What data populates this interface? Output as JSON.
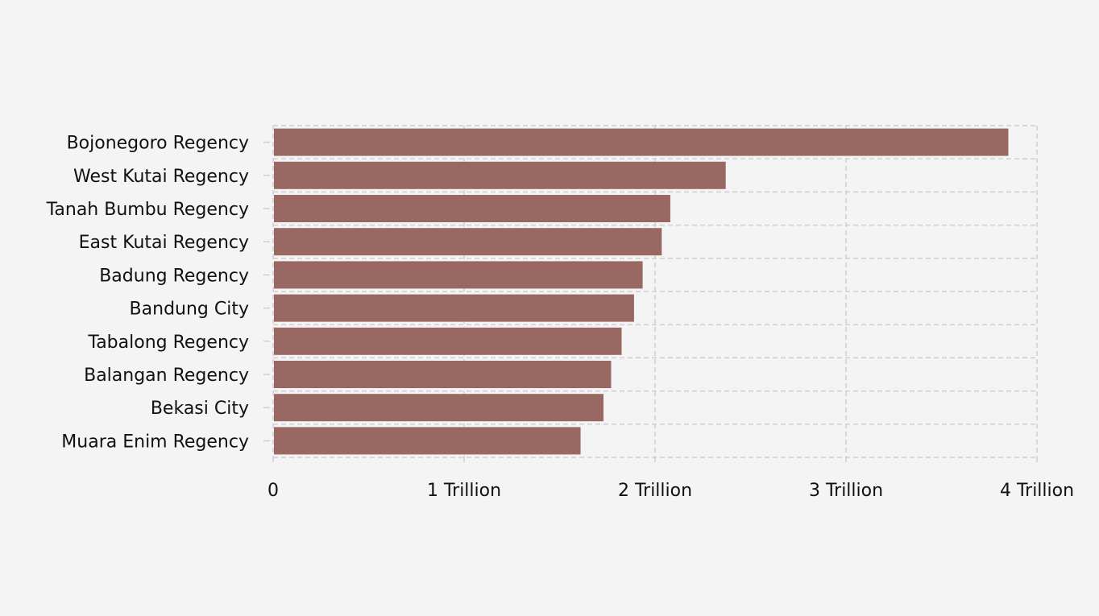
{
  "chart_data": {
    "type": "bar",
    "orientation": "horizontal",
    "title": "",
    "xlabel": "",
    "ylabel": "",
    "categories": [
      "Bojonegoro Regency",
      "West Kutai Regency",
      "Tanah Bumbu Regency",
      "East Kutai Regency",
      "Badung Regency",
      "Bandung City",
      "Tabalong Regency",
      "Balangan Regency",
      "Bekasi City",
      "Muara Enim Regency"
    ],
    "values": [
      3850000000000,
      2370000000000,
      2080000000000,
      2035000000000,
      1935000000000,
      1890000000000,
      1825000000000,
      1770000000000,
      1730000000000,
      1610000000000
    ],
    "xlim": [
      0,
      4000000000000
    ],
    "xticks": [
      0,
      1000000000000,
      2000000000000,
      3000000000000,
      4000000000000
    ],
    "xtick_labels": [
      "0",
      "1 Trillion",
      "2 Trillion",
      "3 Trillion",
      "4 Trillion"
    ],
    "bar_color": "#996862",
    "grid": true,
    "grid_style": "dashed"
  }
}
